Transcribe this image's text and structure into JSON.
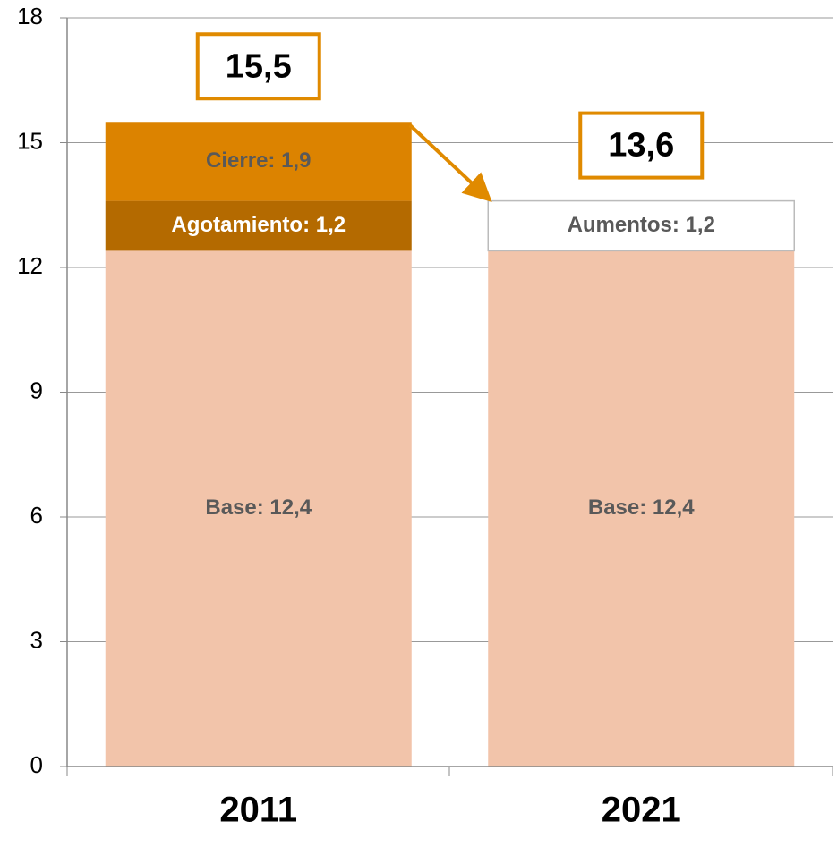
{
  "chart_data": {
    "type": "stacked_bar",
    "categories": [
      "2011",
      "2021"
    ],
    "series": [
      {
        "color": "#f2c4aa",
        "values": [
          12.4,
          12.4
        ],
        "value_labels": [
          "Base: 12,4",
          "Base: 12,4"
        ]
      },
      {
        "color": "#b46a00",
        "values": [
          1.2,
          null
        ],
        "value_labels": [
          "Agotamiento: 1,2",
          null
        ]
      },
      {
        "color": "#dc8300",
        "values": [
          1.9,
          null
        ],
        "value_labels": [
          "Cierre: 1,9",
          null
        ]
      },
      {
        "color": "#ffffff",
        "values": [
          null,
          1.2
        ],
        "value_labels": [
          null,
          "Aumentos: 1,2"
        ]
      }
    ],
    "totals": {
      "values": [
        15.5,
        13.6
      ],
      "value_labels": [
        "15,5",
        "13,6"
      ]
    },
    "ylim": [
      0,
      18
    ],
    "yticks": [
      0,
      3,
      6,
      9,
      12,
      15,
      18
    ],
    "grid": true
  }
}
